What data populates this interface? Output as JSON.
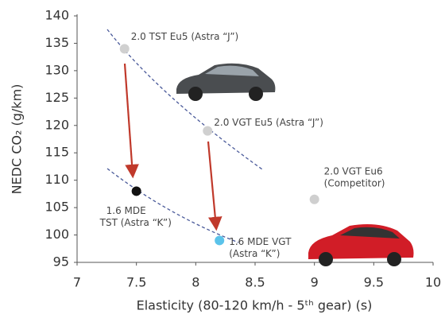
{
  "chart_data": {
    "type": "scatter",
    "x_label": "Elasticity (80-120 km/h - 5ᵗʰ gear) (s)",
    "y_label": "NEDC CO₂ (g/km)",
    "xlim": [
      7,
      10
    ],
    "xticks": [
      7,
      7.5,
      8,
      8.5,
      9,
      9.5,
      10
    ],
    "ylim": [
      95,
      140
    ],
    "yticks": [
      95,
      100,
      105,
      110,
      115,
      120,
      125,
      130,
      135,
      140
    ],
    "points": [
      {
        "x": 7.4,
        "y": 134,
        "color": "#d0d0d0",
        "label": [
          "2.0 TST Eu5 (Astra “J”)"
        ]
      },
      {
        "x": 8.1,
        "y": 119,
        "color": "#d0d0d0",
        "label": [
          "2.0 VGT Eu5 (Astra “J”)"
        ]
      },
      {
        "x": 9,
        "y": 106.5,
        "color": "#cfcfcf",
        "label": [
          "2.0 VGT Eu6",
          "(Competitor)"
        ]
      },
      {
        "x": 7.5,
        "y": 108,
        "color": "#111111",
        "label": [
          "1.6 MDE",
          "TST (Astra “K”)"
        ]
      },
      {
        "x": 8.2,
        "y": 99,
        "color": "#5bc3ea",
        "label": [
          "1.6 MDE VGT",
          "(Astra “K”)"
        ]
      }
    ]
  }
}
